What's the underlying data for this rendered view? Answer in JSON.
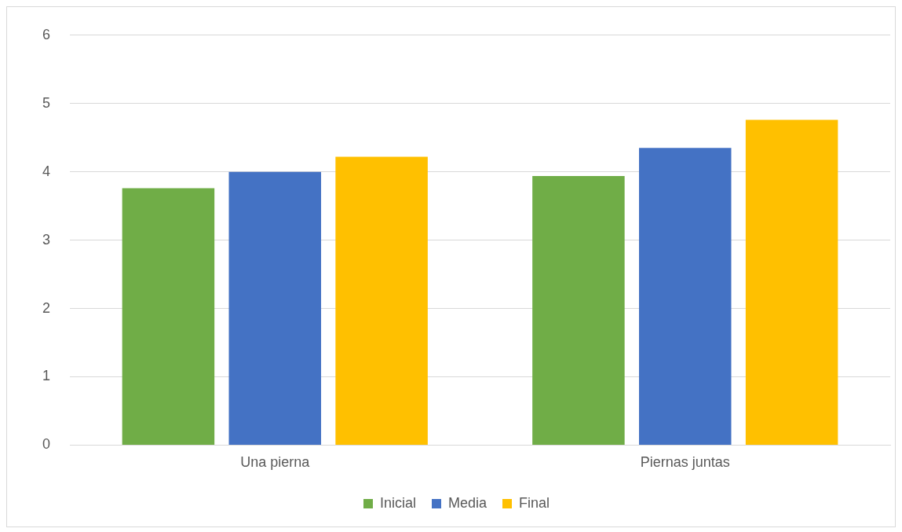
{
  "chart_data": {
    "type": "bar",
    "categories": [
      "Una pierna",
      "Piernas juntas"
    ],
    "series": [
      {
        "name": "Inicial",
        "color": "#70ad47",
        "values": [
          3.76,
          3.94
        ]
      },
      {
        "name": "Media",
        "color": "#4472c4",
        "values": [
          4.0,
          4.35
        ]
      },
      {
        "name": "Final",
        "color": "#ffc000",
        "values": [
          4.22,
          4.76
        ]
      }
    ],
    "ylim": [
      0,
      6
    ],
    "yticks": [
      0,
      1,
      2,
      3,
      4,
      5,
      6
    ],
    "grid": "y",
    "legend": "bottom"
  }
}
